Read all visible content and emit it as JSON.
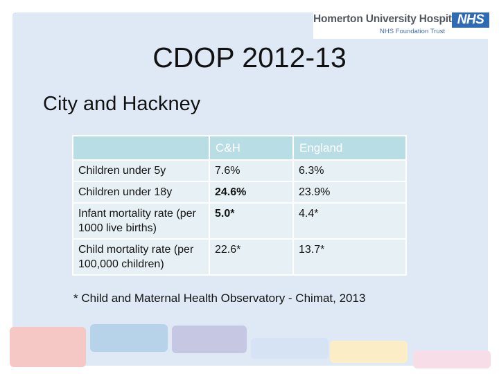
{
  "header": {
    "org_name": "Homerton University Hospital",
    "org_sub": "NHS Foundation Trust",
    "nhs": "NHS"
  },
  "slide": {
    "title": "CDOP 2012-13",
    "subtitle": "City and Hackney"
  },
  "table": {
    "headers": [
      "",
      "C&H",
      "England"
    ],
    "rows": [
      {
        "label": "Children under 5y",
        "ch": "7.6%",
        "england": "6.3%"
      },
      {
        "label": "Children under 18y",
        "ch": "24.6%",
        "england": "23.9%"
      },
      {
        "label": "Infant mortality rate (per 1000 live births)",
        "ch": "5.0*",
        "england": "4.4*"
      },
      {
        "label": "Child mortality rate (per 100,000 children)",
        "ch": "22.6*",
        "england": "13.7*"
      }
    ]
  },
  "footnote": "* Child and Maternal Health Observatory - Chimat, 2013",
  "colors": {
    "background": "#dfe9f6",
    "header_cell": "#b9dde4",
    "body_cell": "#e7f1f5",
    "nhs_blue": "#2f6bb4"
  }
}
